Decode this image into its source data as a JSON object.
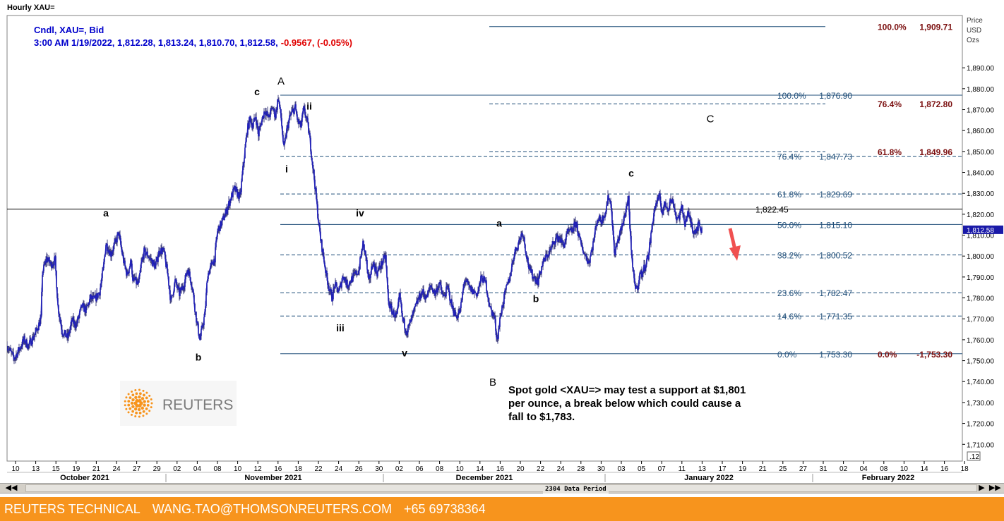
{
  "window_title": "Hourly XAU=",
  "chart_data": {
    "type": "candlestick",
    "header_line1": "Cndl, XAU=, Bid",
    "header_line2_prefix": "3:00 AM 1/19/2022, 1,812.28, 1,813.24, 1,810.70, 1,812.58,",
    "header_line2_change": "-0.9567, (-0.05%)",
    "y_axis_title": [
      "Price",
      "USD",
      "Ozs"
    ],
    "ylim": [
      1702,
      1915
    ],
    "y_ticks": [
      1710,
      1720,
      1730,
      1740,
      1750,
      1760,
      1770,
      1780,
      1790,
      1800,
      1810,
      1820,
      1830,
      1840,
      1850,
      1860,
      1870,
      1880,
      1890
    ],
    "y_tick_labels": [
      "1,710.00",
      "1,720.00",
      "1,730.00",
      "1,740.00",
      "1,750.00",
      "1,760.00",
      "1,770.00",
      "1,780.00",
      "1,790.00",
      "1,800.00",
      "1,810.00",
      "1,820.00",
      "1,830.00",
      "1,840.00",
      "1,850.00",
      "1,860.00",
      "1,870.00",
      "1,880.00",
      "1,890.00"
    ],
    "y_axis_badge": ".12",
    "last_price_label": "1,812.58",
    "x_day_labels": [
      "10",
      "13",
      "15",
      "19",
      "21",
      "24",
      "27",
      "29",
      "02",
      "04",
      "08",
      "10",
      "12",
      "16",
      "18",
      "22",
      "24",
      "26",
      "30",
      "02",
      "06",
      "08",
      "10",
      "14",
      "16",
      "20",
      "22",
      "24",
      "28",
      "30",
      "03",
      "05",
      "07",
      "11",
      "13",
      "17",
      "19",
      "21",
      "25",
      "27",
      "31",
      "02",
      "04",
      "08",
      "10",
      "14",
      "16",
      "18"
    ],
    "x_month_labels": [
      "October 2021",
      "November 2021",
      "December 2021",
      "January 2022",
      "February 2022"
    ],
    "data_period_label": "2304 Data Period",
    "price_path_t": [
      0,
      5,
      10,
      18,
      24,
      30,
      40,
      48,
      50,
      56,
      62,
      68,
      72,
      78,
      86,
      92,
      98,
      106,
      112,
      118,
      124,
      131,
      136,
      140,
      147,
      154,
      158,
      162,
      166,
      170,
      176,
      178,
      180,
      186,
      190,
      194,
      198,
      204,
      210,
      216,
      222,
      228,
      232,
      238,
      244,
      250,
      256,
      262,
      268,
      273,
      276,
      280,
      284,
      290,
      294,
      298,
      304,
      310,
      316,
      322,
      330,
      335,
      340,
      344,
      348,
      352,
      356,
      360,
      365,
      370,
      376,
      380,
      384,
      388,
      392,
      396,
      400,
      404,
      408,
      412,
      416,
      420,
      424,
      428,
      432,
      436,
      440,
      444,
      448,
      452,
      456,
      460,
      464,
      470,
      476,
      482,
      490,
      498,
      504,
      508,
      512,
      518,
      524,
      530,
      536,
      540,
      546,
      552,
      556,
      560,
      566,
      570,
      576,
      582,
      588,
      594,
      600,
      606,
      612,
      618,
      624,
      630,
      636,
      642,
      648,
      654,
      660,
      666,
      672,
      678,
      684,
      690,
      694,
      700,
      706,
      712,
      718,
      724,
      730,
      736,
      740,
      746,
      752,
      758,
      764,
      770,
      776,
      782,
      788,
      794,
      800,
      806,
      812,
      818,
      824,
      830,
      836,
      842,
      848,
      852,
      856,
      860,
      864,
      868,
      872,
      876,
      880,
      884,
      888,
      892,
      896,
      900,
      904,
      908,
      912,
      916,
      920,
      924,
      928,
      932,
      936,
      940,
      944,
      948,
      952,
      956,
      960,
      964,
      968,
      972,
      976,
      980,
      984,
      988,
      992,
      996,
      1000,
      1006,
      1012,
      1018,
      1024
    ],
    "price_path_v": [
      1757,
      1754,
      1751,
      1756,
      1760,
      1757,
      1763,
      1770,
      1792,
      1799,
      1796,
      1798,
      1776,
      1764,
      1761,
      1769,
      1767,
      1776,
      1774,
      1780,
      1779,
      1783,
      1793,
      1806,
      1801,
      1807,
      1811,
      1803,
      1796,
      1791,
      1798,
      1787,
      1789,
      1786,
      1796,
      1802,
      1801,
      1798,
      1795,
      1803,
      1802,
      1790,
      1778,
      1788,
      1782,
      1786,
      1794,
      1786,
      1770,
      1760,
      1765,
      1772,
      1791,
      1796,
      1799,
      1812,
      1816,
      1821,
      1827,
      1832,
      1828,
      1845,
      1860,
      1866,
      1862,
      1867,
      1858,
      1864,
      1870,
      1866,
      1871,
      1867,
      1876,
      1866,
      1851,
      1860,
      1866,
      1869,
      1871,
      1864,
      1862,
      1870,
      1866,
      1858,
      1846,
      1834,
      1820,
      1808,
      1800,
      1791,
      1785,
      1780,
      1786,
      1783,
      1791,
      1786,
      1790,
      1793,
      1806,
      1800,
      1787,
      1797,
      1792,
      1796,
      1800,
      1778,
      1773,
      1771,
      1781,
      1770,
      1764,
      1767,
      1773,
      1779,
      1783,
      1780,
      1786,
      1782,
      1787,
      1780,
      1785,
      1776,
      1771,
      1774,
      1789,
      1785,
      1783,
      1782,
      1790,
      1787,
      1775,
      1771,
      1760,
      1774,
      1783,
      1790,
      1801,
      1806,
      1812,
      1800,
      1793,
      1790,
      1788,
      1796,
      1800,
      1803,
      1808,
      1809,
      1805,
      1811,
      1812,
      1816,
      1806,
      1801,
      1797,
      1806,
      1818,
      1817,
      1822,
      1829,
      1823,
      1801,
      1806,
      1811,
      1815,
      1822,
      1828,
      1801,
      1788,
      1784,
      1791,
      1792,
      1796,
      1800,
      1810,
      1821,
      1826,
      1828,
      1821,
      1825,
      1823,
      1827,
      1825,
      1818,
      1819,
      1823,
      1816,
      1820,
      1817,
      1812,
      1813,
      1815,
      1812
    ],
    "fib_left": [
      {
        "label": "100.0%",
        "value": "1,876.90",
        "v": 1876.9,
        "style": "solid"
      },
      {
        "label": "76.4%",
        "value": "1,847.73",
        "v": 1847.73,
        "style": "dashed"
      },
      {
        "label": "61.8%",
        "value": "1,829.69",
        "v": 1829.69,
        "style": "dashed"
      },
      {
        "label": "50.0%",
        "value": "1,815.10",
        "v": 1815.1,
        "style": "solid"
      },
      {
        "label": "38.2%",
        "value": "1,800.52",
        "v": 1800.52,
        "style": "dashed"
      },
      {
        "label": "23.6%",
        "value": "1,782.47",
        "v": 1782.47,
        "style": "dashed"
      },
      {
        "label": "14.6%",
        "value": "1,771.35",
        "v": 1771.35,
        "style": "dashed"
      },
      {
        "label": "0.0%",
        "value": "1,753.30",
        "v": 1753.3,
        "style": "solid"
      }
    ],
    "fib_right": [
      {
        "label": "100.0%",
        "value": "1,909.71",
        "v": 1909.71,
        "style": "solid"
      },
      {
        "label": "76.4%",
        "value": "1,872.80",
        "v": 1872.8,
        "style": "dashed"
      },
      {
        "label": "61.8%",
        "value": "1,849.96",
        "v": 1849.96,
        "style": "dashed"
      },
      {
        "label": "0.0%",
        "value": "-1,753.30",
        "v": 1753.3,
        "style": "solid"
      }
    ],
    "horizontal_level": {
      "value": "1,822.45",
      "v": 1822.45
    },
    "wave_labels": [
      {
        "text": "A",
        "t": 388,
        "v": 1882
      },
      {
        "text": "B",
        "t": 688,
        "v": 1738
      },
      {
        "text": "C",
        "t": 996,
        "v": 1864
      },
      {
        "text": "a",
        "t": 140,
        "v": 1819
      },
      {
        "text": "b",
        "t": 271,
        "v": 1750
      },
      {
        "text": "c",
        "t": 354,
        "v": 1877
      },
      {
        "text": "ii",
        "t": 428,
        "v": 1870
      },
      {
        "text": "i",
        "t": 396,
        "v": 1840
      },
      {
        "text": "iv",
        "t": 500,
        "v": 1819
      },
      {
        "text": "iii",
        "t": 472,
        "v": 1764
      },
      {
        "text": "v",
        "t": 563,
        "v": 1752
      },
      {
        "text": "a",
        "t": 697,
        "v": 1814
      },
      {
        "text": "b",
        "t": 749,
        "v": 1778
      },
      {
        "text": "c",
        "t": 884,
        "v": 1838
      }
    ],
    "annotation": [
      "Spot gold <XAU=> may test a support at $1,801",
      "per ounce, a break below which could cause a",
      "fall to $1,783."
    ],
    "logo_text": "REUTERS",
    "colors": {
      "candle": "#1a1aa8",
      "fib_left": "#1f4e79",
      "fib_right": "#7b0f0f",
      "header": "#0000cc",
      "change": "#e00000",
      "arrow": "#f05050",
      "footer": "#f7941d",
      "logo": "#f7941d"
    }
  },
  "scrollbar": {
    "left_icon": "double-left-arrow-icon",
    "right_icon": "double-right-arrow-icon"
  },
  "footer": {
    "brand": "REUTERS TECHNICAL",
    "email": "WANG.TAO@THOMSONREUTERS.COM",
    "phone": "+65 69738364"
  }
}
